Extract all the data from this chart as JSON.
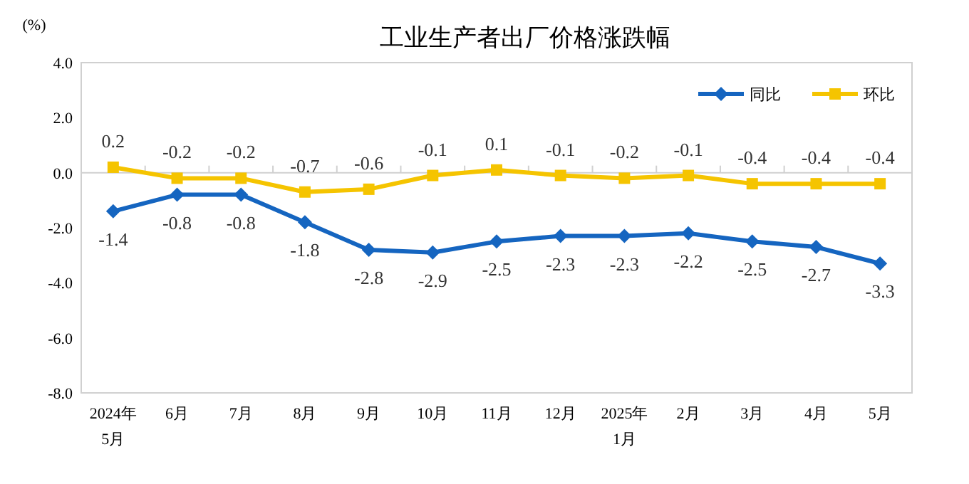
{
  "chart_data": {
    "type": "line",
    "title": "工业生产者出厂价格涨跌幅",
    "ylabel": "(%)",
    "categories": [
      "2024年\n5月",
      "6月",
      "7月",
      "8月",
      "9月",
      "10月",
      "11月",
      "12月",
      "2025年\n1月",
      "2月",
      "3月",
      "4月",
      "5月"
    ],
    "series": [
      {
        "name": "同比",
        "color": "#1565c0",
        "marker": "diamond",
        "values": [
          -1.4,
          -0.8,
          -0.8,
          -1.8,
          -2.8,
          -2.9,
          -2.5,
          -2.3,
          -2.3,
          -2.2,
          -2.5,
          -2.7,
          -3.3
        ]
      },
      {
        "name": "环比",
        "color": "#f5c400",
        "marker": "square",
        "values": [
          0.2,
          -0.2,
          -0.2,
          -0.7,
          -0.6,
          -0.1,
          0.1,
          -0.1,
          -0.2,
          -0.1,
          -0.4,
          -0.4,
          -0.4
        ]
      }
    ],
    "ylim": [
      -8,
      4
    ],
    "yticks": [
      {
        "value": -8,
        "label": "-8.0"
      },
      {
        "value": -6,
        "label": "-6.0"
      },
      {
        "value": -4,
        "label": "-4.0"
      },
      {
        "value": -2,
        "label": "-2.0"
      },
      {
        "value": 0,
        "label": "0.0"
      },
      {
        "value": 2,
        "label": "2.0"
      },
      {
        "value": 4,
        "label": "4.0"
      }
    ],
    "legend": "top right",
    "data_labels": true
  }
}
